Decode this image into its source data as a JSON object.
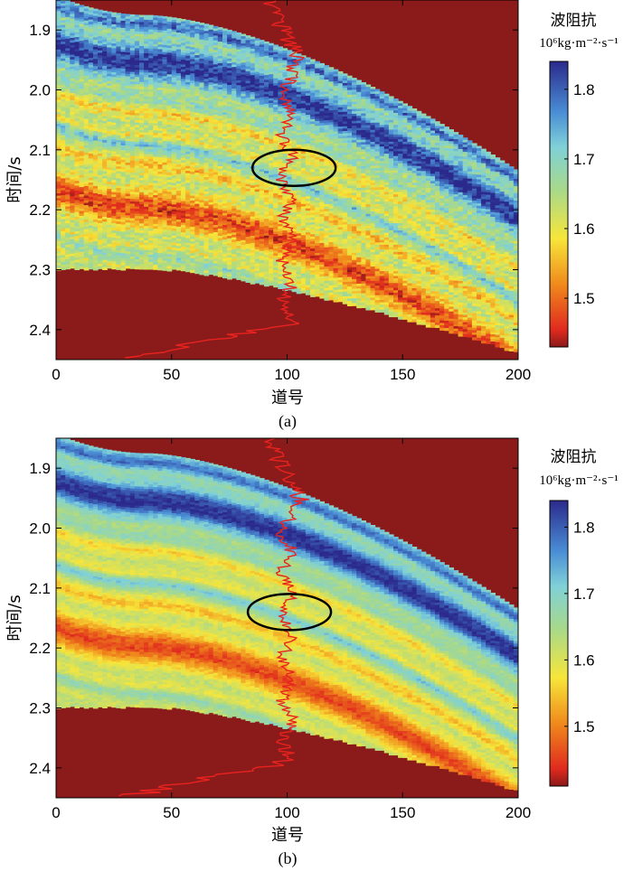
{
  "chart_data": [
    {
      "type": "heatmap",
      "caption": "(a)",
      "xlabel": "道号",
      "ylabel": "时间/s",
      "xlim": [
        0,
        200
      ],
      "ylim": [
        1.85,
        2.45
      ],
      "xticks": [
        "0",
        "50",
        "100",
        "150",
        "200"
      ],
      "yticks": [
        "1.9",
        "2.0",
        "2.1",
        "2.2",
        "2.3",
        "2.4"
      ],
      "colorbar": {
        "title": "波阻抗",
        "unit": "10⁶kg·m⁻²·s⁻¹",
        "range": [
          1.43,
          1.84
        ],
        "ticks": [
          "1.8",
          "1.7",
          "1.6",
          "1.5"
        ]
      },
      "mask_color": "#8b1a1a",
      "well_trace_trace_number": 100,
      "annotation": {
        "type": "ellipse",
        "center_trace": 103,
        "center_time": 2.13,
        "label": ""
      }
    },
    {
      "type": "heatmap",
      "caption": "(b)",
      "xlabel": "道号",
      "ylabel": "时间/s",
      "xlim": [
        0,
        200
      ],
      "ylim": [
        1.85,
        2.45
      ],
      "xticks": [
        "0",
        "50",
        "100",
        "150",
        "200"
      ],
      "yticks": [
        "1.9",
        "2.0",
        "2.1",
        "2.2",
        "2.3",
        "2.4"
      ],
      "colorbar": {
        "title": "波阻抗",
        "unit": "10⁶kg·m⁻²·s⁻¹",
        "range": [
          1.41,
          1.84
        ],
        "ticks": [
          "1.8",
          "1.7",
          "1.6",
          "1.5"
        ]
      },
      "mask_color": "#8b1a1a",
      "well_trace_trace_number": 100,
      "annotation": {
        "type": "ellipse",
        "center_trace": 101,
        "center_time": 2.14,
        "label": ""
      }
    }
  ]
}
